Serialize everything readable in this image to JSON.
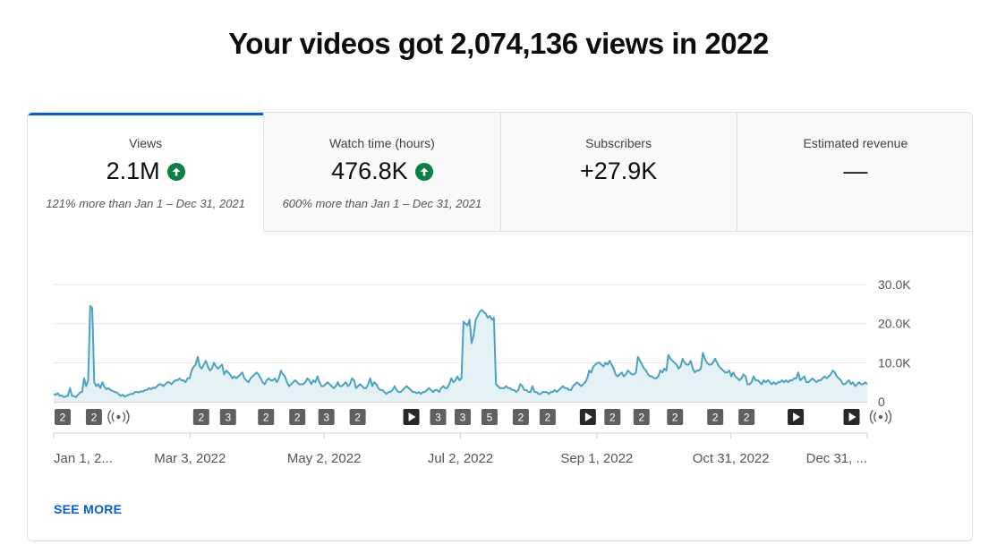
{
  "headline": "Your videos got 2,074,136 views in 2022",
  "tabs": [
    {
      "label": "Views",
      "value": "2.1M",
      "trend": "up",
      "comparison": "121% more than Jan 1 – Dec 31, 2021",
      "active": true
    },
    {
      "label": "Watch time (hours)",
      "value": "476.8K",
      "trend": "up",
      "comparison": "600% more than Jan 1 – Dec 31, 2021",
      "active": false
    },
    {
      "label": "Subscribers",
      "value": "+27.9K",
      "trend": "none",
      "comparison": "",
      "active": false
    },
    {
      "label": "Estimated revenue",
      "value": "—",
      "trend": "none",
      "comparison": "",
      "active": false
    }
  ],
  "colors": {
    "accent": "#065fd4",
    "trend_up": "#0b8043",
    "line": "#4aa3c4",
    "area": "#e4f2f6",
    "marker": "#606060"
  },
  "see_more": "SEE MORE",
  "chart_data": {
    "type": "area",
    "series": [
      {
        "values": [
          2000,
          1800,
          2200,
          1500,
          1600,
          1200,
          1400,
          1500,
          3500,
          1600,
          1400,
          1200,
          1800,
          2400,
          2500,
          6000,
          4000,
          5500,
          24500,
          24000,
          5000,
          4000,
          4500,
          3500,
          5000,
          3800,
          3200,
          3500,
          3000,
          2800,
          2500,
          2400,
          2000,
          1500,
          1800,
          1300,
          1600,
          1800,
          2000,
          2000,
          2500,
          2500,
          2400,
          2700,
          2600,
          3000,
          3000,
          3500,
          3200,
          3600,
          3500,
          4000,
          4500,
          4500,
          4000,
          4500,
          5000,
          5000,
          4500,
          5000,
          5500,
          5500,
          6000,
          5500,
          5500,
          5000,
          6000,
          6000,
          8000,
          9000,
          9500,
          11500,
          9000,
          8500,
          9500,
          10500,
          9000,
          8000,
          8500,
          10000,
          9000,
          8500,
          9000,
          9500,
          7000,
          8000,
          7500,
          7000,
          6000,
          6500,
          6000,
          6500,
          7000,
          7500,
          6000,
          5500,
          5000,
          6000,
          6500,
          7000,
          7500,
          7000,
          6000,
          5000,
          4500,
          5500,
          6000,
          5500,
          5500,
          6000,
          5000,
          6000,
          8000,
          7000,
          6500,
          5000,
          4000,
          4500,
          5000,
          5500,
          5000,
          4500,
          4500,
          4500,
          5000,
          6000,
          5500,
          4500,
          5500,
          5000,
          6500,
          5000,
          4000,
          4000,
          4500,
          5000,
          4500,
          4000,
          3500,
          4000,
          5000,
          4000,
          4000,
          4500,
          5000,
          4000,
          4500,
          6000,
          5500,
          3500,
          4000,
          4500,
          4000,
          3500,
          3500,
          4500,
          6000,
          4000,
          5000,
          4500,
          3500,
          3000,
          3000,
          2500,
          2000,
          2500,
          2500,
          3000,
          4000,
          3000,
          2500,
          2500,
          3000,
          3500,
          4000,
          3500,
          3000,
          2500,
          2500,
          2200,
          2500,
          2000,
          2500,
          2500,
          3000,
          3500,
          3000,
          2500,
          3000,
          3000,
          2500,
          3500,
          4000,
          3500,
          3500,
          4500,
          6000,
          5000,
          5500,
          6500,
          5500,
          6000,
          20500,
          20000,
          19500,
          21000,
          15000,
          17000,
          21000,
          22000,
          23000,
          23500,
          23000,
          22500,
          21500,
          22000,
          21000,
          21500,
          4500,
          4000,
          3500,
          3500,
          3500,
          4000,
          3500,
          3500,
          3000,
          3000,
          2500,
          3000,
          4500,
          4000,
          3000,
          3000,
          2500,
          2500,
          4000,
          2500,
          2500,
          2000,
          2000,
          2500,
          2500,
          2500,
          2000,
          2500,
          2500,
          3000,
          2500,
          3000,
          3500,
          4000,
          3500,
          3500,
          3000,
          3000,
          4000,
          4500,
          5000,
          4500,
          4000,
          4500,
          5000,
          6000,
          8000,
          7500,
          9000,
          9500,
          10000,
          10000,
          9500,
          9000,
          10000,
          9500,
          10500,
          9500,
          8500,
          7000,
          6500,
          7000,
          7500,
          6500,
          7000,
          8000,
          7500,
          7000,
          7000,
          7500,
          11500,
          10500,
          9500,
          8500,
          8000,
          7000,
          6500,
          6500,
          6000,
          6000,
          6500,
          8000,
          7500,
          8500,
          8000,
          12000,
          11000,
          10500,
          10000,
          9500,
          8500,
          9000,
          11000,
          10000,
          9500,
          9500,
          10500,
          8500,
          7500,
          8000,
          8000,
          8500,
          12500,
          11000,
          10000,
          9500,
          9500,
          10000,
          11000,
          10000,
          9000,
          8500,
          8000,
          7500,
          7500,
          8000,
          6500,
          7500,
          6500,
          6000,
          5500,
          6000,
          7000,
          6500,
          4500,
          4500,
          5000,
          6500,
          5500,
          5500,
          5000,
          4500,
          5500,
          5000,
          5500,
          5000,
          4500,
          5000,
          4500,
          5000,
          5000,
          5500,
          5000,
          5500,
          5000,
          5500,
          5500,
          6000,
          6000,
          7500,
          5500,
          6000,
          6500,
          5000,
          5000,
          5500,
          6000,
          5500,
          5000,
          5500,
          5500,
          6000,
          6500,
          6000,
          6500,
          7000,
          8000,
          7500,
          6500,
          6000,
          5500,
          4500,
          4500,
          5000,
          5500,
          4500,
          5000,
          4000,
          4500,
          5000,
          4500,
          4500,
          5000,
          4500
        ]
      }
    ],
    "y_ticks": [
      "30.0K",
      "20.0K",
      "10.0K",
      "0"
    ],
    "y_tick_values": [
      30000,
      20000,
      10000,
      0
    ],
    "ylim": [
      0,
      30000
    ],
    "x_ticks": [
      "Jan 1, 2...",
      "Mar 3, 2022",
      "May 2, 2022",
      "Jul 2, 2022",
      "Sep 1, 2022",
      "Oct 31, 2022",
      "Dec 31, ..."
    ],
    "x_tick_days": [
      0,
      61,
      121,
      182,
      243,
      303,
      364
    ],
    "x_range_days": [
      0,
      364
    ],
    "grid": true,
    "markers": [
      {
        "day": 4,
        "type": "badge",
        "label": "2"
      },
      {
        "day": 18,
        "type": "badge",
        "label": "2"
      },
      {
        "day": 29,
        "type": "live",
        "label": ""
      },
      {
        "day": 66,
        "type": "badge",
        "label": "2"
      },
      {
        "day": 78,
        "type": "badge",
        "label": "3"
      },
      {
        "day": 95,
        "type": "badge",
        "label": "2"
      },
      {
        "day": 109,
        "type": "badge",
        "label": "2"
      },
      {
        "day": 122,
        "type": "badge",
        "label": "3"
      },
      {
        "day": 136,
        "type": "badge",
        "label": "2"
      },
      {
        "day": 160,
        "type": "play",
        "label": ""
      },
      {
        "day": 172,
        "type": "badge",
        "label": "3"
      },
      {
        "day": 183,
        "type": "badge",
        "label": "3"
      },
      {
        "day": 195,
        "type": "badge",
        "label": "5"
      },
      {
        "day": 209,
        "type": "badge",
        "label": "2"
      },
      {
        "day": 221,
        "type": "badge",
        "label": "2"
      },
      {
        "day": 239,
        "type": "play",
        "label": ""
      },
      {
        "day": 250,
        "type": "badge",
        "label": "2"
      },
      {
        "day": 263,
        "type": "badge",
        "label": "2"
      },
      {
        "day": 278,
        "type": "badge",
        "label": "2"
      },
      {
        "day": 296,
        "type": "badge",
        "label": "2"
      },
      {
        "day": 310,
        "type": "badge",
        "label": "2"
      },
      {
        "day": 332,
        "type": "play",
        "label": ""
      },
      {
        "day": 357,
        "type": "play",
        "label": ""
      },
      {
        "day": 370,
        "type": "live",
        "label": ""
      }
    ]
  }
}
